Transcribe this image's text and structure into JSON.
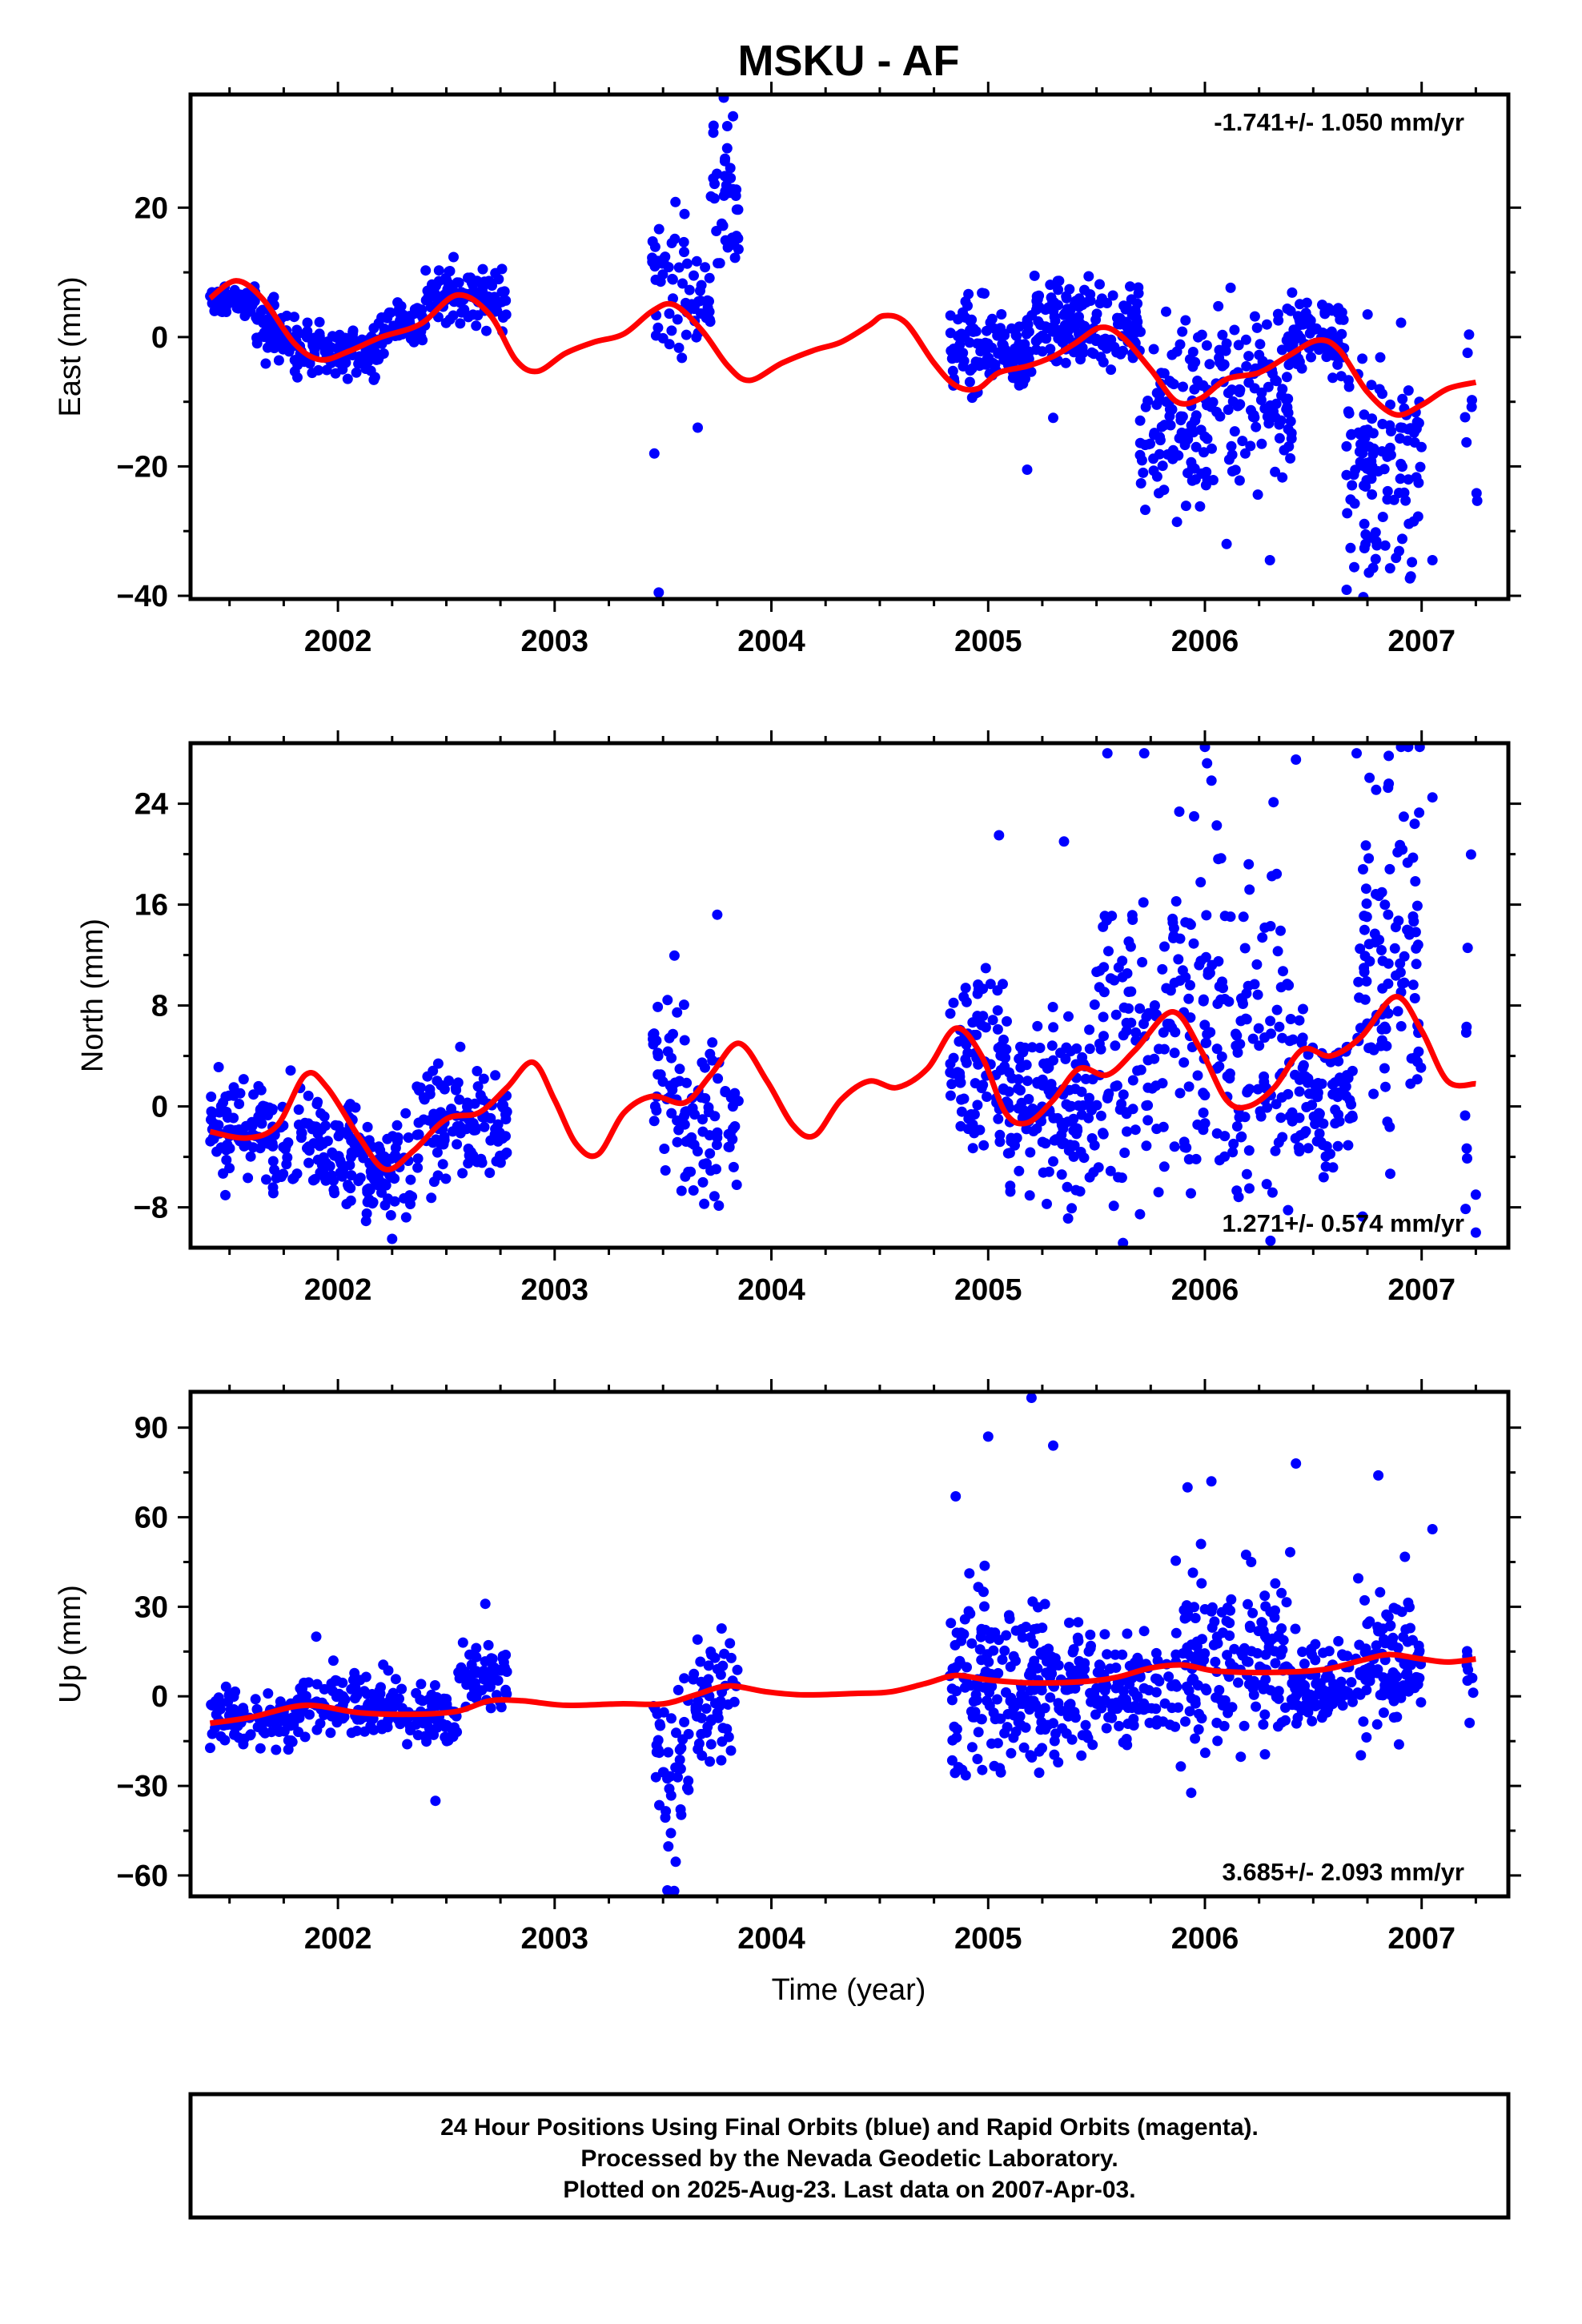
{
  "title": "MSKU - AF",
  "colors": {
    "points": "#0000ff",
    "fit": "#ff0000",
    "frame": "#000000"
  },
  "xlabel": "Time (year)",
  "xticks": [
    2002,
    2003,
    2004,
    2005,
    2006,
    2007
  ],
  "xlim": [
    2001.32,
    2007.4
  ],
  "footer": {
    "line1": "24 Hour Positions Using Final Orbits (blue) and Rapid Orbits (magenta).",
    "line2": "Processed by the Nevada Geodetic Laboratory.",
    "line3": "Plotted on 2025-Aug-23. Last data on 2007-Apr-03."
  },
  "chart_data": [
    {
      "type": "scatter",
      "ylabel": "East (mm)",
      "rate": "-1.741+/- 1.050 mm/yr",
      "rate_position": "top-right",
      "ylim": [
        -40.5,
        37.5
      ],
      "yticks": [
        20,
        0,
        -20,
        -40
      ],
      "yticklabels": [
        "20",
        "0",
        "−20",
        "−40"
      ],
      "segments": [
        {
          "t0": 2001.41,
          "t1": 2001.62,
          "c": 5.5,
          "sd": 1.0,
          "n": 70
        },
        {
          "t0": 2001.62,
          "t1": 2001.8,
          "c": 1.0,
          "sd": 2.2,
          "n": 50
        },
        {
          "t0": 2001.8,
          "t1": 2002.2,
          "c": -2.0,
          "sd": 2.0,
          "n": 110
        },
        {
          "t0": 2002.2,
          "t1": 2002.4,
          "c": 2.0,
          "sd": 2.0,
          "n": 55
        },
        {
          "t0": 2002.4,
          "t1": 2002.78,
          "c": 6.5,
          "sd": 2.2,
          "n": 110
        },
        {
          "t0": 2003.45,
          "t1": 2003.6,
          "c": 9.0,
          "sd": 6.0,
          "n": 40
        },
        {
          "t0": 2003.6,
          "t1": 2003.72,
          "c": 5.0,
          "sd": 3.0,
          "n": 30
        },
        {
          "t0": 2003.72,
          "t1": 2003.85,
          "c": 20.0,
          "sd": 6.0,
          "n": 40
        },
        {
          "t0": 2004.82,
          "t1": 2005.2,
          "c": -2.0,
          "sd": 3.5,
          "n": 130
        },
        {
          "t0": 2005.2,
          "t1": 2005.7,
          "c": 2.0,
          "sd": 3.0,
          "n": 160
        },
        {
          "t0": 2005.7,
          "t1": 2006.05,
          "c": -12.0,
          "sd": 7.0,
          "n": 110
        },
        {
          "t0": 2006.05,
          "t1": 2006.4,
          "c": -8.0,
          "sd": 8.0,
          "n": 110
        },
        {
          "t0": 2006.4,
          "t1": 2006.65,
          "c": 0.0,
          "sd": 3.0,
          "n": 80
        },
        {
          "t0": 2006.65,
          "t1": 2007.0,
          "c": -20.0,
          "sd": 8.0,
          "n": 120
        },
        {
          "t0": 2007.2,
          "t1": 2007.26,
          "c": -8.0,
          "sd": 10.0,
          "n": 8
        }
      ],
      "outliers": [
        [
          2003.48,
          -39.5
        ],
        [
          2003.46,
          -18.0
        ],
        [
          2003.66,
          -14.0
        ],
        [
          2003.78,
          37.0
        ],
        [
          2005.18,
          -20.5
        ],
        [
          2005.3,
          -12.5
        ],
        [
          2006.1,
          -32.0
        ],
        [
          2006.3,
          -34.5
        ],
        [
          2006.95,
          -37.0
        ],
        [
          2007.05,
          -34.5
        ]
      ],
      "fit": [
        [
          2001.41,
          6.0
        ],
        [
          2001.53,
          8.7
        ],
        [
          2001.65,
          6.0
        ],
        [
          2001.8,
          -1.0
        ],
        [
          2001.92,
          -3.5
        ],
        [
          2002.05,
          -2.2
        ],
        [
          2002.2,
          0.0
        ],
        [
          2002.38,
          2.0
        ],
        [
          2002.55,
          6.5
        ],
        [
          2002.7,
          3.5
        ],
        [
          2002.82,
          -3.5
        ],
        [
          2002.92,
          -5.3
        ],
        [
          2003.05,
          -2.5
        ],
        [
          2003.18,
          -0.8
        ],
        [
          2003.32,
          0.5
        ],
        [
          2003.45,
          4.0
        ],
        [
          2003.55,
          5.0
        ],
        [
          2003.68,
          1.0
        ],
        [
          2003.8,
          -4.5
        ],
        [
          2003.9,
          -6.7
        ],
        [
          2004.05,
          -4.0
        ],
        [
          2004.2,
          -2.0
        ],
        [
          2004.32,
          -0.8
        ],
        [
          2004.45,
          1.8
        ],
        [
          2004.52,
          3.3
        ],
        [
          2004.62,
          2.2
        ],
        [
          2004.75,
          -4.0
        ],
        [
          2004.85,
          -7.5
        ],
        [
          2004.95,
          -8.0
        ],
        [
          2005.05,
          -5.5
        ],
        [
          2005.18,
          -4.5
        ],
        [
          2005.3,
          -3.0
        ],
        [
          2005.4,
          -1.0
        ],
        [
          2005.52,
          1.5
        ],
        [
          2005.62,
          0.0
        ],
        [
          2005.75,
          -5.0
        ],
        [
          2005.87,
          -10.0
        ],
        [
          2005.98,
          -9.5
        ],
        [
          2006.1,
          -6.5
        ],
        [
          2006.25,
          -5.5
        ],
        [
          2006.38,
          -3.0
        ],
        [
          2006.52,
          -0.5
        ],
        [
          2006.62,
          -2.0
        ],
        [
          2006.75,
          -8.5
        ],
        [
          2006.88,
          -12.0
        ],
        [
          2007.0,
          -10.5
        ],
        [
          2007.12,
          -8.0
        ],
        [
          2007.25,
          -7.0
        ]
      ]
    },
    {
      "type": "scatter",
      "ylabel": "North (mm)",
      "rate": "1.271+/- 0.574 mm/yr",
      "rate_position": "bottom-right",
      "ylim": [
        -11.2,
        28.8
      ],
      "yticks": [
        24,
        16,
        8,
        0,
        -8
      ],
      "yticklabels": [
        "24",
        "16",
        "8",
        "0",
        "−8"
      ],
      "segments": [
        {
          "t0": 2001.41,
          "t1": 2001.65,
          "c": -2.0,
          "sd": 2.0,
          "n": 70
        },
        {
          "t0": 2001.65,
          "t1": 2001.85,
          "c": -2.0,
          "sd": 2.0,
          "n": 45
        },
        {
          "t0": 2001.85,
          "t1": 2002.1,
          "c": -3.0,
          "sd": 2.0,
          "n": 80
        },
        {
          "t0": 2002.1,
          "t1": 2002.35,
          "c": -5.5,
          "sd": 2.0,
          "n": 80
        },
        {
          "t0": 2002.35,
          "t1": 2002.78,
          "c": -1.5,
          "sd": 2.2,
          "n": 120
        },
        {
          "t0": 2003.45,
          "t1": 2003.6,
          "c": 2.0,
          "sd": 3.5,
          "n": 40
        },
        {
          "t0": 2003.6,
          "t1": 2003.85,
          "c": -1.0,
          "sd": 3.0,
          "n": 60
        },
        {
          "t0": 2004.82,
          "t1": 2005.1,
          "c": 3.0,
          "sd": 4.0,
          "n": 100
        },
        {
          "t0": 2005.1,
          "t1": 2005.5,
          "c": 0.0,
          "sd": 3.5,
          "n": 140
        },
        {
          "t0": 2005.5,
          "t1": 2005.85,
          "c": 5.0,
          "sd": 6.0,
          "n": 100
        },
        {
          "t0": 2005.85,
          "t1": 2006.1,
          "c": 8.0,
          "sd": 7.0,
          "n": 80
        },
        {
          "t0": 2006.1,
          "t1": 2006.4,
          "c": 4.0,
          "sd": 7.0,
          "n": 90
        },
        {
          "t0": 2006.4,
          "t1": 2006.7,
          "c": 1.0,
          "sd": 3.0,
          "n": 90
        },
        {
          "t0": 2006.7,
          "t1": 2007.0,
          "c": 12.0,
          "sd": 9.0,
          "n": 110
        },
        {
          "t0": 2007.2,
          "t1": 2007.26,
          "c": 0.0,
          "sd": 8.0,
          "n": 8
        }
      ],
      "outliers": [
        [
          2003.75,
          15.2
        ],
        [
          2005.05,
          21.5
        ],
        [
          2005.35,
          21.0
        ],
        [
          2005.55,
          28.0
        ],
        [
          2005.72,
          28.0
        ],
        [
          2005.95,
          23.0
        ],
        [
          2006.0,
          28.5
        ],
        [
          2006.42,
          27.5
        ],
        [
          2006.7,
          28.0
        ],
        [
          2007.05,
          24.5
        ],
        [
          2007.25,
          -7.0
        ],
        [
          2007.25,
          -10.0
        ],
        [
          2002.25,
          -10.5
        ]
      ],
      "fit": [
        [
          2001.41,
          -2.0
        ],
        [
          2001.58,
          -2.5
        ],
        [
          2001.72,
          -1.5
        ],
        [
          2001.85,
          2.5
        ],
        [
          2001.95,
          1.5
        ],
        [
          2002.1,
          -2.5
        ],
        [
          2002.22,
          -5.0
        ],
        [
          2002.35,
          -3.5
        ],
        [
          2002.5,
          -1.0
        ],
        [
          2002.65,
          -0.5
        ],
        [
          2002.78,
          1.5
        ],
        [
          2002.9,
          3.5
        ],
        [
          2003.0,
          0.5
        ],
        [
          2003.1,
          -3.0
        ],
        [
          2003.2,
          -3.8
        ],
        [
          2003.32,
          -0.5
        ],
        [
          2003.45,
          0.8
        ],
        [
          2003.6,
          0.3
        ],
        [
          2003.72,
          2.5
        ],
        [
          2003.85,
          5.0
        ],
        [
          2003.98,
          2.0
        ],
        [
          2004.1,
          -1.5
        ],
        [
          2004.2,
          -2.3
        ],
        [
          2004.32,
          0.5
        ],
        [
          2004.45,
          2.0
        ],
        [
          2004.58,
          1.5
        ],
        [
          2004.72,
          3.0
        ],
        [
          2004.85,
          6.2
        ],
        [
          2004.97,
          4.0
        ],
        [
          2005.08,
          -0.5
        ],
        [
          2005.18,
          -1.3
        ],
        [
          2005.3,
          0.5
        ],
        [
          2005.42,
          3.0
        ],
        [
          2005.55,
          2.5
        ],
        [
          2005.68,
          4.5
        ],
        [
          2005.85,
          7.5
        ],
        [
          2005.98,
          4.5
        ],
        [
          2006.1,
          0.5
        ],
        [
          2006.2,
          0.0
        ],
        [
          2006.32,
          1.5
        ],
        [
          2006.45,
          4.5
        ],
        [
          2006.58,
          4.0
        ],
        [
          2006.72,
          5.5
        ],
        [
          2006.88,
          8.7
        ],
        [
          2007.0,
          6.0
        ],
        [
          2007.12,
          2.0
        ],
        [
          2007.25,
          1.8
        ]
      ]
    },
    {
      "type": "scatter",
      "ylabel": "Up (mm)",
      "rate": "3.685+/- 2.093 mm/yr",
      "rate_position": "bottom-right",
      "ylim": [
        -67,
        102
      ],
      "yticks": [
        90,
        60,
        30,
        0,
        -30,
        -60
      ],
      "yticklabels": [
        "90",
        "60",
        "30",
        "0",
        "−30",
        "−60"
      ],
      "segments": [
        {
          "t0": 2001.41,
          "t1": 2001.8,
          "c": -8.0,
          "sd": 4.5,
          "n": 100
        },
        {
          "t0": 2001.8,
          "t1": 2002.3,
          "c": -3.0,
          "sd": 5.0,
          "n": 130
        },
        {
          "t0": 2002.3,
          "t1": 2002.55,
          "c": -7.0,
          "sd": 5.0,
          "n": 60
        },
        {
          "t0": 2002.55,
          "t1": 2002.78,
          "c": 8.0,
          "sd": 5.0,
          "n": 60
        },
        {
          "t0": 2003.45,
          "t1": 2003.62,
          "c": -25.0,
          "sd": 15.0,
          "n": 45
        },
        {
          "t0": 2003.62,
          "t1": 2003.85,
          "c": 0.0,
          "sd": 10.0,
          "n": 60
        },
        {
          "t0": 2004.82,
          "t1": 2005.1,
          "c": 5.0,
          "sd": 18.0,
          "n": 100
        },
        {
          "t0": 2005.1,
          "t1": 2005.5,
          "c": 2.0,
          "sd": 12.0,
          "n": 140
        },
        {
          "t0": 2005.5,
          "t1": 2005.85,
          "c": 3.0,
          "sd": 9.0,
          "n": 90
        },
        {
          "t0": 2005.85,
          "t1": 2006.4,
          "c": 12.0,
          "sd": 16.0,
          "n": 170
        },
        {
          "t0": 2006.4,
          "t1": 2006.7,
          "c": 5.0,
          "sd": 6.0,
          "n": 90
        },
        {
          "t0": 2006.7,
          "t1": 2007.0,
          "c": 10.0,
          "sd": 12.0,
          "n": 110
        },
        {
          "t0": 2007.2,
          "t1": 2007.26,
          "c": 5.0,
          "sd": 8.0,
          "n": 8
        }
      ],
      "outliers": [
        [
          2005.2,
          100.0
        ],
        [
          2005.3,
          84.0
        ],
        [
          2005.0,
          87.0
        ],
        [
          2004.85,
          67.0
        ],
        [
          2006.42,
          78.0
        ],
        [
          2006.8,
          74.0
        ],
        [
          2006.03,
          72.0
        ],
        [
          2005.92,
          70.0
        ],
        [
          2002.68,
          31.0
        ],
        [
          2002.45,
          -35.0
        ],
        [
          2003.52,
          -65.0
        ],
        [
          2007.05,
          56.0
        ],
        [
          2001.9,
          20.0
        ]
      ],
      "fit": [
        [
          2001.41,
          -9.0
        ],
        [
          2001.6,
          -7.0
        ],
        [
          2001.85,
          -3.0
        ],
        [
          2002.1,
          -5.5
        ],
        [
          2002.35,
          -6.0
        ],
        [
          2002.55,
          -5.0
        ],
        [
          2002.7,
          -1.5
        ],
        [
          2002.85,
          -1.5
        ],
        [
          2003.05,
          -3.0
        ],
        [
          2003.3,
          -2.5
        ],
        [
          2003.5,
          -2.5
        ],
        [
          2003.65,
          0.5
        ],
        [
          2003.8,
          3.5
        ],
        [
          2003.98,
          1.5
        ],
        [
          2004.15,
          0.5
        ],
        [
          2004.4,
          1.0
        ],
        [
          2004.55,
          1.5
        ],
        [
          2004.72,
          4.5
        ],
        [
          2004.85,
          7.0
        ],
        [
          2005.0,
          5.5
        ],
        [
          2005.2,
          4.5
        ],
        [
          2005.45,
          5.0
        ],
        [
          2005.6,
          6.5
        ],
        [
          2005.75,
          9.5
        ],
        [
          2005.9,
          10.5
        ],
        [
          2006.05,
          8.5
        ],
        [
          2006.3,
          8.0
        ],
        [
          2006.55,
          9.0
        ],
        [
          2006.72,
          12.0
        ],
        [
          2006.85,
          14.0
        ],
        [
          2007.0,
          12.5
        ],
        [
          2007.12,
          11.5
        ],
        [
          2007.25,
          12.5
        ]
      ]
    }
  ]
}
